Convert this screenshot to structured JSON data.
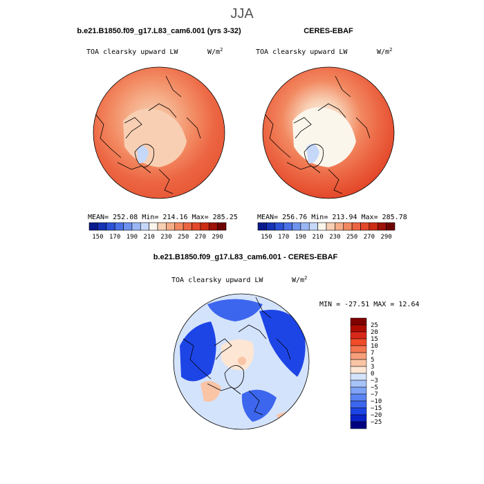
{
  "chart_data": {
    "type": "map",
    "suptitle": "JJA",
    "panels": [
      {
        "id": "model",
        "title": "b.e21.B1850.f09_g17.L83_cam6.001 (yrs 3-32)",
        "variable": "TOA clearsky upward LW",
        "units_base": "W/m",
        "units_exp": "2",
        "stats_text": "MEAN= 252.08   Min= 214.16   Max= 285.25",
        "mean": 252.08,
        "min": 214.16,
        "max": 285.25
      },
      {
        "id": "obs",
        "title": "CERES-EBAF",
        "variable": "TOA clearsky upward LW",
        "units_base": "W/m",
        "units_exp": "2",
        "stats_text": "MEAN= 256.76   Min= 213.94   Max= 285.78",
        "mean": 256.76,
        "min": 213.94,
        "max": 285.78
      },
      {
        "id": "diff",
        "title": "b.e21.B1850.f09_g17.L83_cam6.001 - CERES-EBAF",
        "variable": "TOA clearsky upward LW",
        "units_base": "W/m",
        "units_exp": "2",
        "stats_text": "MIN = -27.51 MAX =  12.64",
        "min": -27.51,
        "max": 12.64
      }
    ],
    "abs_colorbar": {
      "colors": [
        "#0a1a8c",
        "#1632b4",
        "#2b52d6",
        "#4a72e6",
        "#6e93ee",
        "#9bb6f4",
        "#c6d8fa",
        "#fbf6ec",
        "#f8cfb3",
        "#f5ad88",
        "#f28860",
        "#ec6542",
        "#e3482a",
        "#cc2c14",
        "#9e1208",
        "#6e0402"
      ],
      "labels": [
        "150",
        "170",
        "190",
        "210",
        "230",
        "250",
        "270",
        "290"
      ]
    },
    "diff_colorbar": {
      "colors": [
        "#000080",
        "#0a23c8",
        "#1d45e6",
        "#3d66ee",
        "#5a84f2",
        "#7fa3f6",
        "#a8c3fa",
        "#d4e3fc",
        "#fde6d4",
        "#fac4a6",
        "#f79f7b",
        "#f47650",
        "#f04c28",
        "#d8281a",
        "#b00c00",
        "#800000"
      ],
      "labels": [
        "25",
        "20",
        "15",
        "10",
        "7",
        "5",
        "3",
        "0",
        "−3",
        "−5",
        "−7",
        "−10",
        "−15",
        "−20",
        "−25"
      ]
    }
  }
}
